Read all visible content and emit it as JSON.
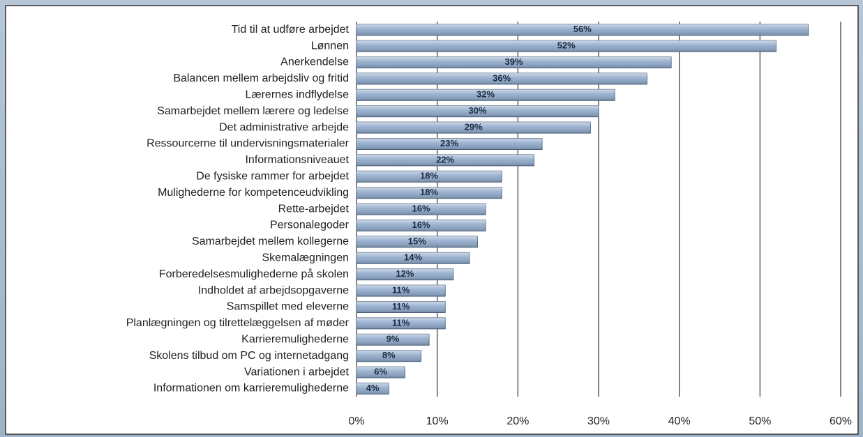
{
  "chart_data": {
    "type": "bar",
    "orientation": "horizontal",
    "categories": [
      "Tid til at udføre arbejdet",
      "Lønnen",
      "Anerkendelse",
      "Balancen mellem arbejdsliv og fritid",
      "Lærernes indflydelse",
      "Samarbejdet mellem lærere og ledelse",
      "Det administrative arbejde",
      "Ressourcerne til undervisningsmaterialer",
      "Informationsniveauet",
      "De fysiske rammer for arbejdet",
      "Mulighederne for kompetenceudvikling",
      "Rette-arbejdet",
      "Personalegoder",
      "Samarbejdet mellem kollegerne",
      "Skemalægningen",
      "Forberedelsesmulighederne på skolen",
      "Indholdet af arbejdsopgaverne",
      "Samspillet med eleverne",
      "Planlægningen og tilrettelæggelsen af møder",
      "Karrieremulighederne",
      "Skolens tilbud om PC og internetadgang",
      "Variationen i arbejdet",
      "Informationen om karrieremulighederne"
    ],
    "values": [
      56,
      52,
      39,
      36,
      32,
      30,
      29,
      23,
      22,
      18,
      18,
      16,
      16,
      15,
      14,
      12,
      11,
      11,
      11,
      9,
      8,
      6,
      4
    ],
    "value_labels": [
      "56%",
      "52%",
      "39%",
      "36%",
      "32%",
      "30%",
      "29%",
      "23%",
      "22%",
      "18%",
      "18%",
      "16%",
      "16%",
      "15%",
      "14%",
      "12%",
      "11%",
      "11%",
      "11%",
      "9%",
      "8%",
      "6%",
      "4%"
    ],
    "color": "#8ea8c9",
    "xlim": [
      0,
      60
    ],
    "xticks": [
      {
        "value": 0,
        "label": "0%"
      },
      {
        "value": 10,
        "label": "10%"
      },
      {
        "value": 20,
        "label": "20%"
      },
      {
        "value": 30,
        "label": "30%"
      },
      {
        "value": 40,
        "label": "40%"
      },
      {
        "value": 50,
        "label": "50%"
      },
      {
        "value": 60,
        "label": "60%"
      }
    ],
    "grid": true
  }
}
